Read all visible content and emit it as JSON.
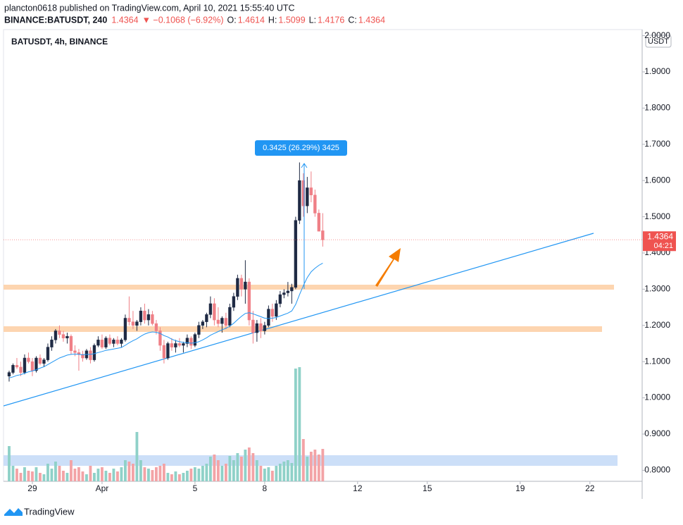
{
  "header": {
    "author_line": "plancton0618 published on TradingView.com, April 10, 2021 15:55:40 UTC",
    "symbol": "BINANCE:BATUSDT, 240",
    "last": "1.4364",
    "change": "▼ −0.1068 (−6.92%)",
    "ohlc": [
      {
        "label": "O:",
        "value": "1.4614"
      },
      {
        "label": "H:",
        "value": "1.5099"
      },
      {
        "label": "L:",
        "value": "1.4176"
      },
      {
        "label": "C:",
        "value": "1.4364"
      }
    ]
  },
  "chart_data": {
    "type": "candlestick",
    "title": "BATUSDT, 4h, BINANCE",
    "currency": "USDT",
    "measure": "0.3425 (26.29%) 3425",
    "last_price": 1.4364,
    "countdown": "04:21",
    "footer": "TradingView",
    "colors": {
      "up": "#1f2a44",
      "down": "#ef7f86",
      "vol_up": "#8fd1c8",
      "vol_down": "#f3a3a6",
      "ma": "#2196f3"
    },
    "xlim": [
      -1.45,
      163.5
    ],
    "xticks": [
      {
        "value": 6,
        "label": "29"
      },
      {
        "value": 24,
        "label": "Apr"
      },
      {
        "value": 48,
        "label": "5"
      },
      {
        "value": 66,
        "label": "8"
      },
      {
        "value": 90,
        "label": "12"
      },
      {
        "value": 108,
        "label": "15"
      },
      {
        "value": 132,
        "label": "19"
      },
      {
        "value": 150,
        "label": "22"
      }
    ],
    "ylim": [
      0.7696,
      2.0167
    ],
    "yticks": [
      {
        "value": 0.8,
        "label": "0.8000"
      },
      {
        "value": 0.9,
        "label": "0.9000"
      },
      {
        "value": 1.0,
        "label": "1.0000"
      },
      {
        "value": 1.1,
        "label": "1.1000"
      },
      {
        "value": 1.2,
        "label": "1.2000"
      },
      {
        "value": 1.3,
        "label": "1.3000"
      },
      {
        "value": 1.4,
        "label": "1.4000"
      },
      {
        "value": 1.5,
        "label": "1.5000"
      },
      {
        "value": 1.6,
        "label": "1.6000"
      },
      {
        "value": 1.7,
        "label": "1.7000"
      },
      {
        "value": 1.8,
        "label": "1.8000"
      },
      {
        "value": 1.9,
        "label": "1.9000"
      },
      {
        "value": 2.0,
        "label": "2.0000"
      }
    ],
    "ohlc": [
      [
        1.06,
        1.075,
        1.045,
        1.07
      ],
      [
        1.07,
        1.095,
        1.065,
        1.09
      ],
      [
        1.09,
        1.11,
        1.08,
        1.085
      ],
      [
        1.085,
        1.1,
        1.06,
        1.07
      ],
      [
        1.07,
        1.12,
        1.065,
        1.11
      ],
      [
        1.11,
        1.125,
        1.095,
        1.1
      ],
      [
        1.1,
        1.11,
        1.06,
        1.075
      ],
      [
        1.075,
        1.115,
        1.07,
        1.11
      ],
      [
        1.11,
        1.12,
        1.09,
        1.095
      ],
      [
        1.095,
        1.11,
        1.085,
        1.105
      ],
      [
        1.105,
        1.15,
        1.1,
        1.14
      ],
      [
        1.14,
        1.17,
        1.13,
        1.16
      ],
      [
        1.16,
        1.19,
        1.15,
        1.185
      ],
      [
        1.185,
        1.2,
        1.165,
        1.175
      ],
      [
        1.175,
        1.185,
        1.155,
        1.165
      ],
      [
        1.165,
        1.18,
        1.15,
        1.17
      ],
      [
        1.17,
        1.175,
        1.12,
        1.13
      ],
      [
        1.13,
        1.145,
        1.115,
        1.125
      ],
      [
        1.125,
        1.135,
        1.075,
        1.12
      ],
      [
        1.12,
        1.13,
        1.1,
        1.11
      ],
      [
        1.11,
        1.135,
        1.105,
        1.13
      ],
      [
        1.13,
        1.14,
        1.095,
        1.105
      ],
      [
        1.105,
        1.15,
        1.1,
        1.145
      ],
      [
        1.145,
        1.17,
        1.14,
        1.16
      ],
      [
        1.16,
        1.175,
        1.135,
        1.14
      ],
      [
        1.14,
        1.17,
        1.135,
        1.165
      ],
      [
        1.165,
        1.175,
        1.145,
        1.15
      ],
      [
        1.15,
        1.165,
        1.14,
        1.16
      ],
      [
        1.16,
        1.17,
        1.145,
        1.15
      ],
      [
        1.15,
        1.165,
        1.14,
        1.16
      ],
      [
        1.16,
        1.23,
        1.155,
        1.22
      ],
      [
        1.22,
        1.28,
        1.2,
        1.21
      ],
      [
        1.21,
        1.24,
        1.19,
        1.2
      ],
      [
        1.2,
        1.215,
        1.185,
        1.21
      ],
      [
        1.21,
        1.25,
        1.2,
        1.24
      ],
      [
        1.24,
        1.26,
        1.205,
        1.215
      ],
      [
        1.215,
        1.245,
        1.2,
        1.23
      ],
      [
        1.23,
        1.24,
        1.2,
        1.205
      ],
      [
        1.205,
        1.215,
        1.175,
        1.185
      ],
      [
        1.185,
        1.195,
        1.13,
        1.145
      ],
      [
        1.145,
        1.16,
        1.095,
        1.11
      ],
      [
        1.11,
        1.155,
        1.105,
        1.15
      ],
      [
        1.15,
        1.165,
        1.13,
        1.14
      ],
      [
        1.14,
        1.16,
        1.125,
        1.15
      ],
      [
        1.15,
        1.165,
        1.14,
        1.145
      ],
      [
        1.145,
        1.155,
        1.125,
        1.15
      ],
      [
        1.15,
        1.175,
        1.14,
        1.165
      ],
      [
        1.165,
        1.17,
        1.135,
        1.145
      ],
      [
        1.145,
        1.18,
        1.14,
        1.175
      ],
      [
        1.175,
        1.21,
        1.165,
        1.2
      ],
      [
        1.2,
        1.215,
        1.19,
        1.21
      ],
      [
        1.21,
        1.235,
        1.195,
        1.23
      ],
      [
        1.23,
        1.28,
        1.22,
        1.26
      ],
      [
        1.26,
        1.275,
        1.2,
        1.215
      ],
      [
        1.215,
        1.25,
        1.195,
        1.205
      ],
      [
        1.205,
        1.225,
        1.18,
        1.22
      ],
      [
        1.22,
        1.235,
        1.19,
        1.2
      ],
      [
        1.2,
        1.26,
        1.195,
        1.25
      ],
      [
        1.25,
        1.29,
        1.24,
        1.28
      ],
      [
        1.28,
        1.34,
        1.27,
        1.33
      ],
      [
        1.33,
        1.34,
        1.28,
        1.3
      ],
      [
        1.3,
        1.38,
        1.26,
        1.32
      ],
      [
        1.32,
        1.33,
        1.2,
        1.215
      ],
      [
        1.215,
        1.24,
        1.15,
        1.18
      ],
      [
        1.18,
        1.215,
        1.155,
        1.205
      ],
      [
        1.205,
        1.22,
        1.165,
        1.185
      ],
      [
        1.185,
        1.21,
        1.175,
        1.2
      ],
      [
        1.2,
        1.255,
        1.195,
        1.245
      ],
      [
        1.245,
        1.26,
        1.21,
        1.225
      ],
      [
        1.225,
        1.27,
        1.215,
        1.26
      ],
      [
        1.26,
        1.295,
        1.25,
        1.285
      ],
      [
        1.285,
        1.3,
        1.275,
        1.29
      ],
      [
        1.29,
        1.32,
        1.28,
        1.295
      ],
      [
        1.295,
        1.315,
        1.26,
        1.305
      ],
      [
        1.305,
        1.5,
        1.3,
        1.49
      ],
      [
        1.49,
        1.65,
        1.48,
        1.6
      ],
      [
        1.6,
        1.62,
        1.5,
        1.53
      ],
      [
        1.53,
        1.61,
        1.51,
        1.58
      ],
      [
        1.58,
        1.625,
        1.54,
        1.56
      ],
      [
        1.56,
        1.575,
        1.5,
        1.51
      ],
      [
        1.51,
        1.52,
        1.46,
        1.46
      ],
      [
        1.4614,
        1.5099,
        1.4176,
        1.4364
      ]
    ],
    "ma": [
      1.055,
      1.058,
      1.062,
      1.064,
      1.068,
      1.072,
      1.074,
      1.078,
      1.082,
      1.086,
      1.092,
      1.098,
      1.104,
      1.11,
      1.114,
      1.118,
      1.12,
      1.121,
      1.12,
      1.119,
      1.12,
      1.12,
      1.122,
      1.125,
      1.128,
      1.131,
      1.133,
      1.135,
      1.137,
      1.139,
      1.145,
      1.152,
      1.158,
      1.163,
      1.17,
      1.176,
      1.18,
      1.182,
      1.181,
      1.178,
      1.172,
      1.168,
      1.162,
      1.158,
      1.155,
      1.153,
      1.152,
      1.151,
      1.152,
      1.155,
      1.16,
      1.166,
      1.173,
      1.178,
      1.183,
      1.188,
      1.192,
      1.198,
      1.206,
      1.216,
      1.225,
      1.233,
      1.235,
      1.232,
      1.228,
      1.224,
      1.22,
      1.219,
      1.22,
      1.222,
      1.226,
      1.23,
      1.234,
      1.24,
      1.258,
      1.285,
      1.31,
      1.332,
      1.348,
      1.358,
      1.366,
      1.372
    ],
    "volume": [
      50,
      22,
      18,
      12,
      20,
      15,
      14,
      20,
      12,
      10,
      25,
      18,
      28,
      22,
      15,
      12,
      30,
      18,
      20,
      14,
      10,
      22,
      12,
      18,
      20,
      15,
      12,
      18,
      14,
      20,
      30,
      28,
      25,
      70,
      30,
      20,
      18,
      16,
      20,
      22,
      25,
      12,
      10,
      14,
      10,
      12,
      15,
      18,
      20,
      18,
      22,
      25,
      35,
      38,
      30,
      22,
      25,
      36,
      30,
      40,
      35,
      45,
      48,
      40,
      30,
      22,
      18,
      20,
      15,
      22,
      25,
      28,
      30,
      26,
      160,
      162,
      60,
      35,
      42,
      45,
      38,
      46
    ]
  }
}
